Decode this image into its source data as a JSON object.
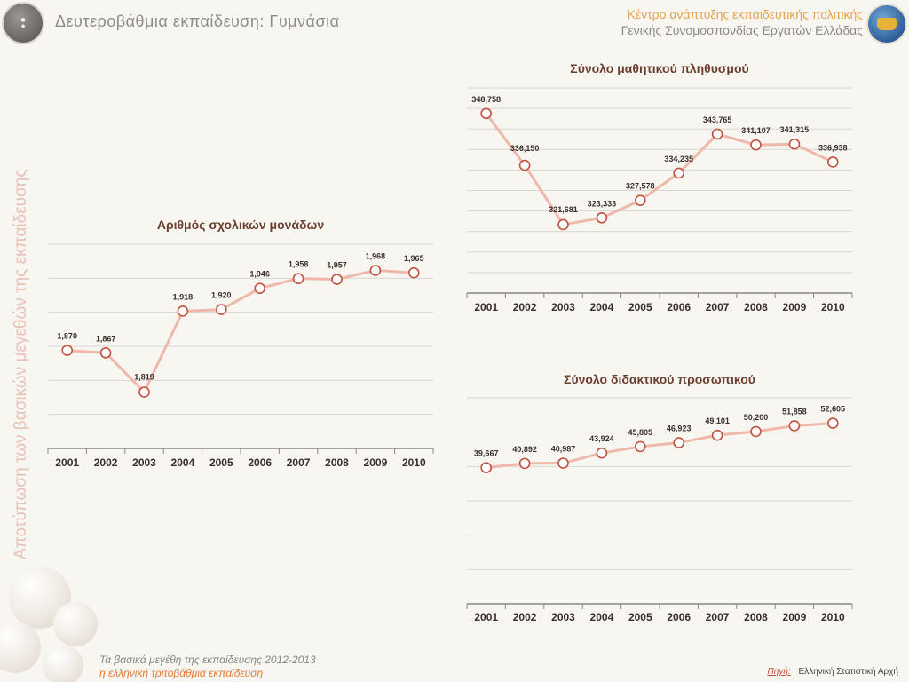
{
  "header": {
    "title": "Δευτεροβάθμια εκπαίδευση: Γυμνάσια",
    "org_line1": "Κέντρο ανάπτυξης εκπαιδευτικής πολιτικής",
    "org_line2": "Γενικής Συνομοσπονδίας Εργατών Ελλάδας"
  },
  "side_title": "Αποτύπωση των βασικών μεγεθών της εκπαίδευσης",
  "footer": {
    "line1": "Τα βασικά μεγέθη της εκπαίδευσης 2012-2013",
    "line2": "η ελληνική τριτοβάθμια εκπαίδευση",
    "source_label": "Πηγή:",
    "source_value": "Ελληνική Στατιστική Αρχή"
  },
  "colors": {
    "line": "#efb8aa",
    "marker_stroke": "#c0523e",
    "grid": "#d9d6d2",
    "axis": "#8c8680"
  },
  "chart_data": [
    {
      "type": "line",
      "title": "Αριθμός σχολικών μονάδων",
      "categories": [
        "2001",
        "2002",
        "2003",
        "2004",
        "2005",
        "2006",
        "2007",
        "2008",
        "2009",
        "2010"
      ],
      "values": [
        1870,
        1867,
        1819,
        1918,
        1920,
        1946,
        1958,
        1957,
        1968,
        1965
      ],
      "labels": [
        "1,870",
        "1,867",
        "1,819",
        "1,918",
        "1,920",
        "1,946",
        "1,958",
        "1,957",
        "1,968",
        "1,965"
      ],
      "ylim": [
        1750,
        2000
      ],
      "grid": true
    },
    {
      "type": "line",
      "title": "Σύνολο μαθητικού πληθυσμού",
      "categories": [
        "2001",
        "2002",
        "2003",
        "2004",
        "2005",
        "2006",
        "2007",
        "2008",
        "2009",
        "2010"
      ],
      "values": [
        348758,
        336150,
        321681,
        323333,
        327578,
        334235,
        343765,
        341107,
        341315,
        336938
      ],
      "labels": [
        "348,758",
        "336,150",
        "321,681",
        "323,333",
        "327,578",
        "334,235",
        "343,765",
        "341,107",
        "341,315",
        "336,938"
      ],
      "ylim": [
        305000,
        355000
      ],
      "grid": true
    },
    {
      "type": "line",
      "title": "Σύνολο διδακτικού προσωπικού",
      "categories": [
        "2001",
        "2002",
        "2003",
        "2004",
        "2005",
        "2006",
        "2007",
        "2008",
        "2009",
        "2010"
      ],
      "values": [
        39667,
        40892,
        40987,
        43924,
        45805,
        46923,
        49101,
        50200,
        51858,
        52605
      ],
      "labels": [
        "39,667",
        "40,892",
        "40,987",
        "43,924",
        "45,805",
        "46,923",
        "49,101",
        "50,200",
        "51,858",
        "52,605"
      ],
      "ylim": [
        0,
        60000
      ],
      "grid": true
    }
  ]
}
